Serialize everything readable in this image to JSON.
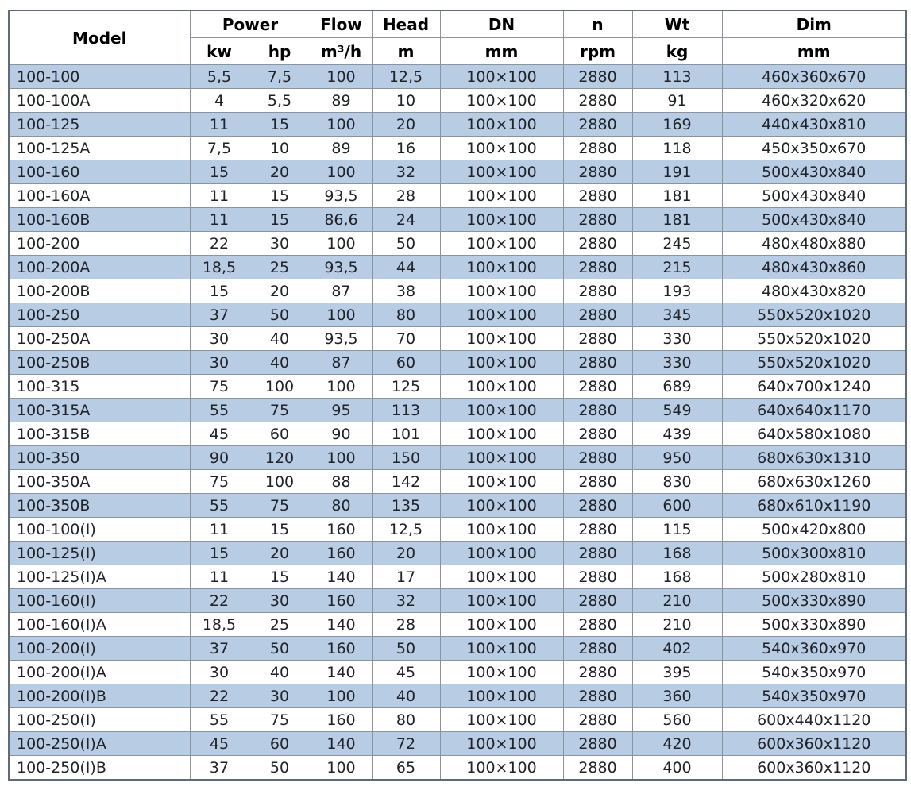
{
  "table": {
    "header": {
      "model": "Model",
      "power_group": "Power",
      "power_kw": "kw",
      "power_hp": "hp",
      "flow": "Flow",
      "flow_unit": "m³/h",
      "head": "Head",
      "head_unit": "m",
      "dn": "DN",
      "dn_unit": "mm",
      "n": "n",
      "n_unit": "rpm",
      "wt": "Wt",
      "wt_unit": "kg",
      "dim": "Dim",
      "dim_unit": "mm"
    },
    "column_keys": [
      "model",
      "power-kw",
      "power-hp",
      "flow",
      "head",
      "dn",
      "n",
      "wt",
      "dim"
    ],
    "rows": [
      [
        "100-100",
        "5,5",
        "7,5",
        "100",
        "12,5",
        "100×100",
        "2880",
        "113",
        "460x360x670"
      ],
      [
        "100-100A",
        "4",
        "5,5",
        "89",
        "10",
        "100×100",
        "2880",
        "91",
        "460x320x620"
      ],
      [
        "100-125",
        "11",
        "15",
        "100",
        "20",
        "100×100",
        "2880",
        "169",
        "440x430x810"
      ],
      [
        "100-125A",
        "7,5",
        "10",
        "89",
        "16",
        "100×100",
        "2880",
        "118",
        "450x350x670"
      ],
      [
        "100-160",
        "15",
        "20",
        "100",
        "32",
        "100×100",
        "2880",
        "191",
        "500x430x840"
      ],
      [
        "100-160A",
        "11",
        "15",
        "93,5",
        "28",
        "100×100",
        "2880",
        "181",
        "500x430x840"
      ],
      [
        "100-160B",
        "11",
        "15",
        "86,6",
        "24",
        "100×100",
        "2880",
        "181",
        "500x430x840"
      ],
      [
        "100-200",
        "22",
        "30",
        "100",
        "50",
        "100×100",
        "2880",
        "245",
        "480x480x880"
      ],
      [
        "100-200A",
        "18,5",
        "25",
        "93,5",
        "44",
        "100×100",
        "2880",
        "215",
        "480x430x860"
      ],
      [
        "100-200B",
        "15",
        "20",
        "87",
        "38",
        "100×100",
        "2880",
        "193",
        "480x430x820"
      ],
      [
        "100-250",
        "37",
        "50",
        "100",
        "80",
        "100×100",
        "2880",
        "345",
        "550x520x1020"
      ],
      [
        "100-250A",
        "30",
        "40",
        "93,5",
        "70",
        "100×100",
        "2880",
        "330",
        "550x520x1020"
      ],
      [
        "100-250B",
        "30",
        "40",
        "87",
        "60",
        "100×100",
        "2880",
        "330",
        "550x520x1020"
      ],
      [
        "100-315",
        "75",
        "100",
        "100",
        "125",
        "100×100",
        "2880",
        "689",
        "640x700x1240"
      ],
      [
        "100-315A",
        "55",
        "75",
        "95",
        "113",
        "100×100",
        "2880",
        "549",
        "640x640x1170"
      ],
      [
        "100-315B",
        "45",
        "60",
        "90",
        "101",
        "100×100",
        "2880",
        "439",
        "640x580x1080"
      ],
      [
        "100-350",
        "90",
        "120",
        "100",
        "150",
        "100×100",
        "2880",
        "950",
        "680x630x1310"
      ],
      [
        "100-350A",
        "75",
        "100",
        "88",
        "142",
        "100×100",
        "2880",
        "830",
        "680x630x1260"
      ],
      [
        "100-350B",
        "55",
        "75",
        "80",
        "135",
        "100×100",
        "2880",
        "600",
        "680x610x1190"
      ],
      [
        "100-100(I)",
        "11",
        "15",
        "160",
        "12,5",
        "100×100",
        "2880",
        "115",
        "500x420x800"
      ],
      [
        "100-125(I)",
        "15",
        "20",
        "160",
        "20",
        "100×100",
        "2880",
        "168",
        "500x300x810"
      ],
      [
        "100-125(I)A",
        "11",
        "15",
        "140",
        "17",
        "100×100",
        "2880",
        "168",
        "500x280x810"
      ],
      [
        "100-160(I)",
        "22",
        "30",
        "160",
        "32",
        "100×100",
        "2880",
        "210",
        "500x330x890"
      ],
      [
        "100-160(I)A",
        "18,5",
        "25",
        "140",
        "28",
        "100×100",
        "2880",
        "210",
        "500x330x890"
      ],
      [
        "100-200(I)",
        "37",
        "50",
        "160",
        "50",
        "100×100",
        "2880",
        "402",
        "540x360x970"
      ],
      [
        "100-200(I)A",
        "30",
        "40",
        "140",
        "45",
        "100×100",
        "2880",
        "395",
        "540x350x970"
      ],
      [
        "100-200(I)B",
        "22",
        "30",
        "100",
        "40",
        "100×100",
        "2880",
        "360",
        "540x350x970"
      ],
      [
        "100-250(I)",
        "55",
        "75",
        "160",
        "80",
        "100×100",
        "2880",
        "560",
        "600x440x1120"
      ],
      [
        "100-250(I)A",
        "45",
        "60",
        "140",
        "72",
        "100×100",
        "2880",
        "420",
        "600x360x1120"
      ],
      [
        "100-250(I)B",
        "37",
        "50",
        "100",
        "65",
        "100×100",
        "2880",
        "400",
        "600x360x1120"
      ]
    ]
  },
  "colors": {
    "stripe_blue": "#b8cce4",
    "row_white": "#ffffff",
    "grid_line": "#8a949e",
    "outer_border": "#5f6b76",
    "text": "#1f2228"
  }
}
